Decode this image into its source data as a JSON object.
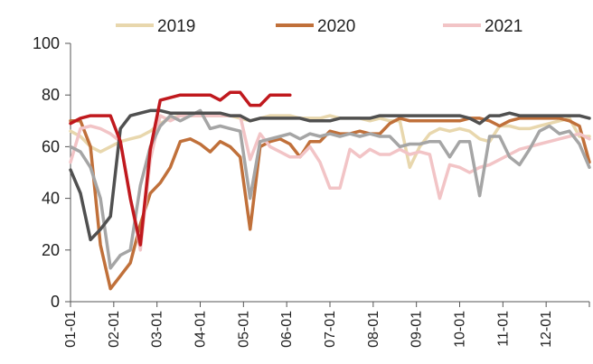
{
  "chart_data": {
    "type": "line",
    "title": "",
    "xlabel": "",
    "ylabel": "",
    "x_ticks": [
      "01-01",
      "02-01",
      "03-01",
      "04-01",
      "05-01",
      "06-01",
      "07-01",
      "08-01",
      "09-01",
      "10-01",
      "11-01",
      "12-01"
    ],
    "y_ticks": [
      "0",
      "20",
      "40",
      "60",
      "80",
      "100"
    ],
    "ylim": [
      0,
      100
    ],
    "x_unit": "week of year (1-53)",
    "xlim": [
      1,
      53
    ],
    "grid": "off",
    "legend": {
      "position": "top",
      "entries": [
        {
          "label": "2019",
          "color": "#e8d7ad"
        },
        {
          "label": "2020",
          "color": "#c0703a"
        },
        {
          "label": "2021",
          "color": "#f2c4c6"
        }
      ]
    },
    "series": [
      {
        "name": "2019",
        "color": "#e8d7ad",
        "x": [
          1,
          2,
          3,
          4,
          5,
          6,
          7,
          8,
          9,
          10,
          11,
          12,
          13,
          14,
          15,
          16,
          17,
          18,
          19,
          20,
          21,
          22,
          23,
          24,
          25,
          26,
          27,
          28,
          29,
          30,
          31,
          32,
          33,
          34,
          35,
          36,
          37,
          38,
          39,
          40,
          41,
          42,
          43,
          44,
          45,
          46,
          47,
          48,
          49,
          50,
          51,
          52,
          53
        ],
        "values": [
          66,
          64,
          60,
          58,
          60,
          62,
          63,
          64,
          66,
          69,
          71,
          72,
          72,
          72,
          72,
          72,
          72,
          71,
          70,
          71,
          72,
          72,
          72,
          71,
          71,
          71,
          72,
          71,
          71,
          71,
          70,
          71,
          70,
          70,
          52,
          60,
          65,
          67,
          66,
          67,
          66,
          63,
          62,
          68,
          68,
          67,
          67,
          68,
          69,
          70,
          71,
          64,
          64
        ]
      },
      {
        "name": "2020",
        "color": "#c0703a",
        "x": [
          1,
          2,
          3,
          4,
          5,
          6,
          7,
          8,
          9,
          10,
          11,
          12,
          13,
          14,
          15,
          16,
          17,
          18,
          19,
          20,
          21,
          22,
          23,
          24,
          25,
          26,
          27,
          28,
          29,
          30,
          31,
          32,
          33,
          34,
          35,
          36,
          37,
          38,
          39,
          40,
          41,
          42,
          43,
          44,
          45,
          46,
          47,
          48,
          49,
          50,
          51,
          52,
          53
        ],
        "values": [
          70,
          70,
          60,
          22,
          5,
          10,
          15,
          30,
          42,
          46,
          52,
          62,
          63,
          61,
          58,
          62,
          60,
          56,
          28,
          60,
          62,
          63,
          61,
          56,
          62,
          62,
          66,
          65,
          65,
          66,
          65,
          65,
          69,
          71,
          70,
          70,
          70,
          70,
          70,
          70,
          71,
          71,
          70,
          68,
          70,
          71,
          71,
          71,
          71,
          71,
          70,
          68,
          54
        ]
      },
      {
        "name": "2021",
        "color": "#f2c4c6",
        "x": [
          1,
          2,
          3,
          4,
          5,
          6,
          7,
          8,
          9,
          10,
          11,
          12,
          13,
          14,
          15,
          16,
          17,
          18,
          19,
          20,
          21,
          22,
          23,
          24,
          25,
          26,
          27,
          28,
          29,
          30,
          31,
          32,
          33,
          34,
          35,
          36,
          37,
          38,
          39,
          40,
          41,
          42,
          43,
          44,
          45,
          46,
          47,
          48,
          49,
          50,
          51,
          52,
          53
        ],
        "values": [
          54,
          67,
          68,
          67,
          65,
          62,
          40,
          20,
          55,
          72,
          70,
          72,
          72,
          72,
          72,
          72,
          72,
          72,
          55,
          65,
          60,
          58,
          56,
          56,
          60,
          54,
          44,
          44,
          59,
          56,
          59,
          57,
          57,
          59,
          57,
          58,
          57,
          40,
          53,
          52,
          50,
          52,
          53,
          55,
          57,
          59,
          60,
          61,
          62,
          63,
          64,
          65,
          63
        ]
      },
      {
        "name": "",
        "color": "#a5a5a5",
        "x": [
          1,
          2,
          3,
          4,
          5,
          6,
          7,
          8,
          9,
          10,
          11,
          12,
          13,
          14,
          15,
          16,
          17,
          18,
          19,
          20,
          21,
          22,
          23,
          24,
          25,
          26,
          27,
          28,
          29,
          30,
          31,
          32,
          33,
          34,
          35,
          36,
          37,
          38,
          39,
          40,
          41,
          42,
          43,
          44,
          45,
          46,
          47,
          48,
          49,
          50,
          51,
          52,
          53
        ],
        "values": [
          60,
          58,
          52,
          40,
          13,
          18,
          20,
          45,
          60,
          68,
          72,
          70,
          72,
          74,
          67,
          68,
          67,
          66,
          40,
          62,
          63,
          64,
          65,
          63,
          65,
          64,
          65,
          64,
          65,
          64,
          65,
          64,
          64,
          60,
          61,
          61,
          62,
          62,
          56,
          62,
          62,
          41,
          64,
          64,
          56,
          53,
          59,
          66,
          68,
          65,
          66,
          61,
          52
        ]
      },
      {
        "name": "",
        "color": "#505050",
        "x": [
          1,
          2,
          3,
          4,
          5,
          6,
          7,
          8,
          9,
          10,
          11,
          12,
          13,
          14,
          15,
          16,
          17,
          18,
          19,
          20,
          21,
          22,
          23,
          24,
          25,
          26,
          27,
          28,
          29,
          30,
          31,
          32,
          33,
          34,
          35,
          36,
          37,
          38,
          39,
          40,
          41,
          42,
          43,
          44,
          45,
          46,
          47,
          48,
          49,
          50,
          51,
          52,
          53
        ],
        "values": [
          51,
          42,
          24,
          28,
          33,
          67,
          72,
          73,
          74,
          74,
          73,
          73,
          73,
          73,
          73,
          73,
          72,
          72,
          70,
          71,
          71,
          71,
          71,
          71,
          70,
          70,
          70,
          71,
          71,
          71,
          71,
          72,
          72,
          72,
          72,
          72,
          72,
          72,
          72,
          72,
          71,
          69,
          72,
          72,
          73,
          72,
          72,
          72,
          72,
          72,
          72,
          72,
          71
        ]
      },
      {
        "name": "",
        "color": "#c0191e",
        "x": [
          1,
          2,
          3,
          4,
          5,
          6,
          7,
          8,
          9,
          10,
          11,
          12,
          13,
          14,
          15,
          16,
          17,
          18,
          19,
          20,
          21,
          22,
          23
        ],
        "values": [
          69,
          71,
          72,
          72,
          72,
          62,
          40,
          22,
          59,
          78,
          79,
          80,
          80,
          80,
          80,
          78,
          81,
          81,
          76,
          76,
          80,
          80,
          80
        ]
      }
    ]
  }
}
